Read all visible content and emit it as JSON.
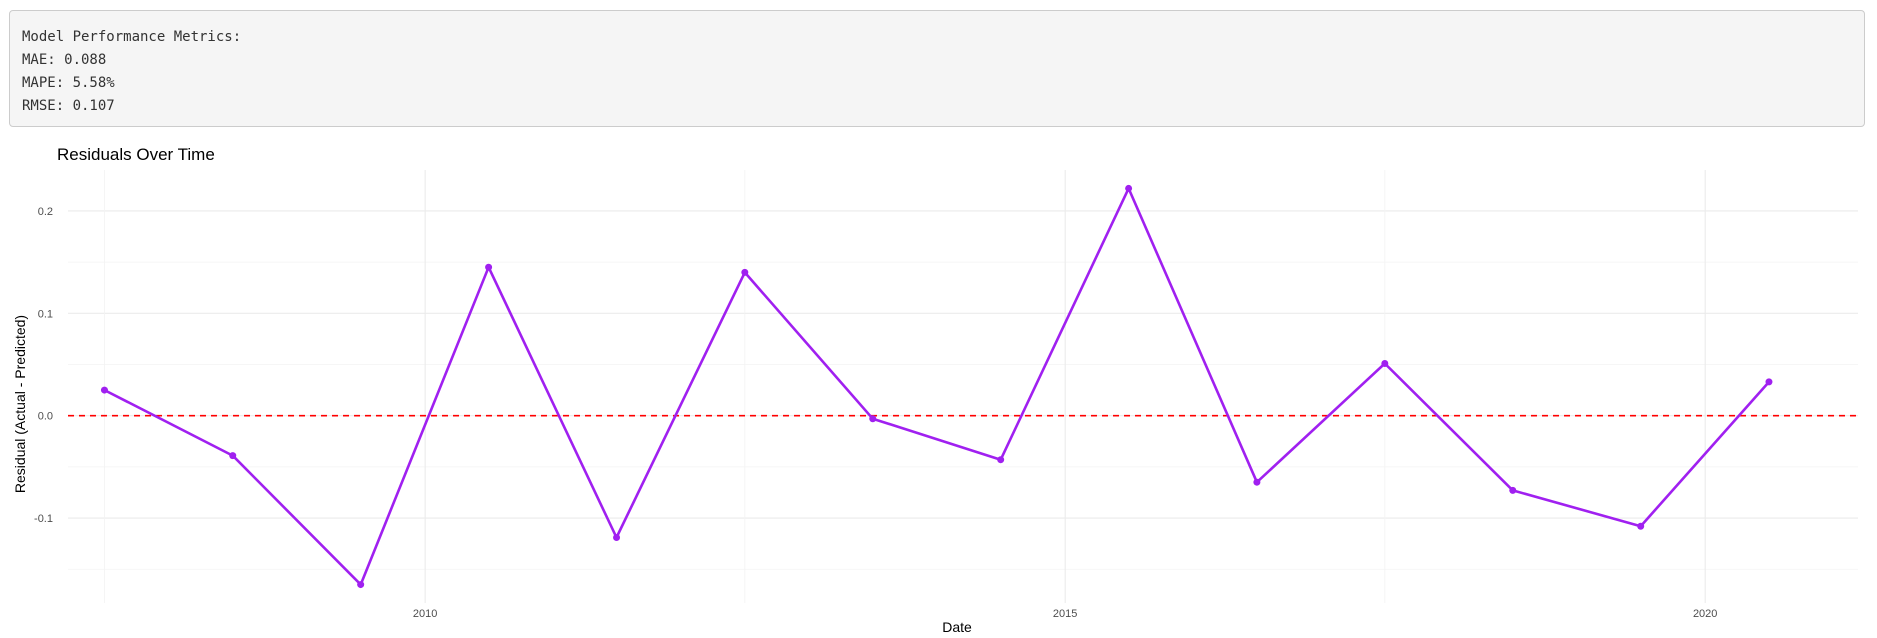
{
  "metrics": {
    "heading": "Model Performance Metrics:",
    "lines": [
      "MAE: 0.088",
      "MAPE: 5.58%",
      "RMSE: 0.107"
    ]
  },
  "chart_data": {
    "type": "line",
    "title": "Residuals Over Time",
    "xlabel": "Date",
    "ylabel": "Residual (Actual - Predicted)",
    "x_type": "date",
    "x": [
      "2007-07-01",
      "2008-07-01",
      "2009-07-01",
      "2010-07-01",
      "2011-07-01",
      "2012-07-01",
      "2013-07-01",
      "2014-07-01",
      "2015-07-01",
      "2016-07-01",
      "2017-07-01",
      "2018-07-01",
      "2019-07-01",
      "2020-07-01"
    ],
    "series": [
      {
        "values": [
          0.025,
          -0.039,
          -0.165,
          0.145,
          -0.119,
          0.14,
          -0.003,
          -0.043,
          0.222,
          -0.065,
          0.051,
          -0.073,
          -0.108,
          0.033
        ],
        "color": "#a020f0"
      }
    ],
    "reference_line": {
      "y": 0,
      "color": "#ff0000",
      "style": "dashed"
    },
    "xlim": [
      "2007-03-19",
      "2021-03-12"
    ],
    "ylim": [
      -0.183,
      0.24
    ],
    "x_ticks": [
      "2010",
      "2015",
      "2020"
    ],
    "y_ticks": [
      -0.1,
      0.0,
      0.1,
      0.2
    ],
    "y_tick_labels": [
      "-0.1",
      "0.0",
      "0.1",
      "0.2"
    ],
    "grid": true,
    "legend": "none"
  }
}
